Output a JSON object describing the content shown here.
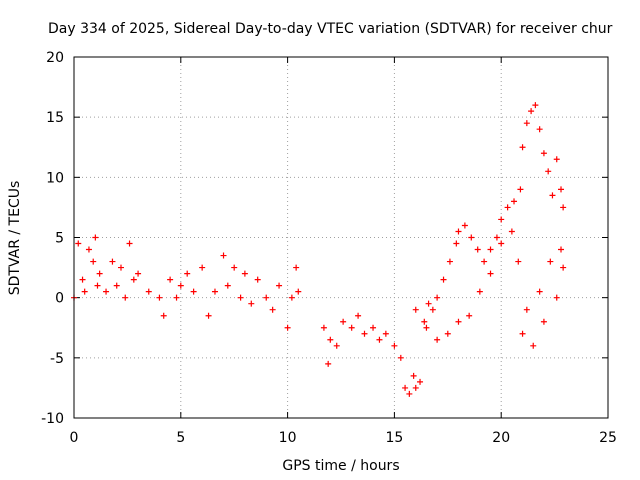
{
  "chart_data": {
    "type": "scatter",
    "title": "Day 334 of 2025, Sidereal Day-to-day VTEC variation (SDTVAR) for receiver chur",
    "xlabel": "GPS time / hours",
    "ylabel": "SDTVAR / TECUs",
    "xlim": [
      0,
      25
    ],
    "ylim": [
      -10,
      20
    ],
    "x_ticks": [
      0,
      5,
      10,
      15,
      20,
      25
    ],
    "x_tick_labels": [
      "0",
      "5",
      "10",
      "15",
      "20",
      "25"
    ],
    "y_ticks": [
      -10,
      -5,
      0,
      5,
      10,
      15,
      20
    ],
    "y_tick_labels": [
      "-10",
      "-5",
      "0",
      "5",
      "10",
      "15",
      "20"
    ],
    "grid": true,
    "marker": "plus",
    "series": [
      {
        "name": "SDTVAR",
        "color": "#ff0000",
        "x": [
          0.0,
          0.2,
          0.4,
          0.5,
          0.7,
          0.9,
          1.0,
          1.1,
          1.2,
          1.5,
          1.8,
          2.0,
          2.2,
          2.4,
          2.6,
          2.8,
          3.0,
          3.5,
          4.0,
          4.2,
          4.5,
          4.8,
          5.0,
          5.3,
          5.6,
          6.0,
          6.3,
          6.6,
          7.0,
          7.2,
          7.5,
          7.8,
          8.0,
          8.3,
          8.6,
          9.0,
          9.3,
          9.6,
          10.0,
          10.2,
          10.4,
          10.5,
          11.7,
          11.9,
          12.0,
          12.3,
          12.6,
          13.0,
          13.3,
          13.6,
          14.0,
          14.3,
          14.6,
          15.0,
          15.3,
          15.5,
          15.7,
          15.9,
          16.0,
          16.2,
          16.4,
          16.6,
          16.8,
          17.0,
          17.3,
          17.6,
          17.9,
          18.0,
          18.3,
          18.6,
          18.9,
          19.2,
          19.5,
          19.8,
          20.0,
          20.3,
          20.6,
          20.9,
          21.0,
          21.2,
          21.4,
          21.6,
          21.8,
          22.0,
          22.2,
          22.4,
          22.6,
          22.8,
          22.9,
          16.0,
          16.5,
          17.0,
          17.5,
          18.0,
          18.5,
          19.0,
          19.5,
          20.0,
          20.5,
          20.8,
          21.0,
          21.2,
          21.5,
          21.8,
          22.0,
          22.3,
          22.6,
          22.8,
          22.9
        ],
        "y": [
          0.0,
          4.5,
          1.5,
          0.5,
          4.0,
          3.0,
          5.0,
          1.0,
          2.0,
          0.5,
          3.0,
          1.0,
          2.5,
          0.0,
          4.5,
          1.5,
          2.0,
          0.5,
          0.0,
          -1.5,
          1.5,
          0.0,
          1.0,
          2.0,
          0.5,
          2.5,
          -1.5,
          0.5,
          3.5,
          1.0,
          2.5,
          0.0,
          2.0,
          -0.5,
          1.5,
          0.0,
          -1.0,
          1.0,
          -2.5,
          0.0,
          2.5,
          0.5,
          -2.5,
          -5.5,
          -3.5,
          -4.0,
          -2.0,
          -2.5,
          -1.5,
          -3.0,
          -2.5,
          -3.5,
          -3.0,
          -4.0,
          -5.0,
          -7.5,
          -8.0,
          -6.5,
          -7.5,
          -7.0,
          -2.0,
          -0.5,
          -1.0,
          0.0,
          1.5,
          3.0,
          4.5,
          5.5,
          6.0,
          5.0,
          4.0,
          3.0,
          4.0,
          5.0,
          6.5,
          7.5,
          8.0,
          9.0,
          12.5,
          14.5,
          15.5,
          16.0,
          14.0,
          12.0,
          10.5,
          8.5,
          11.5,
          9.0,
          7.5,
          -1.0,
          -2.5,
          -3.5,
          -3.0,
          -2.0,
          -1.5,
          0.5,
          2.0,
          4.5,
          5.5,
          3.0,
          -3.0,
          -1.0,
          -4.0,
          0.5,
          -2.0,
          3.0,
          0.0,
          4.0,
          2.5
        ]
      }
    ]
  }
}
